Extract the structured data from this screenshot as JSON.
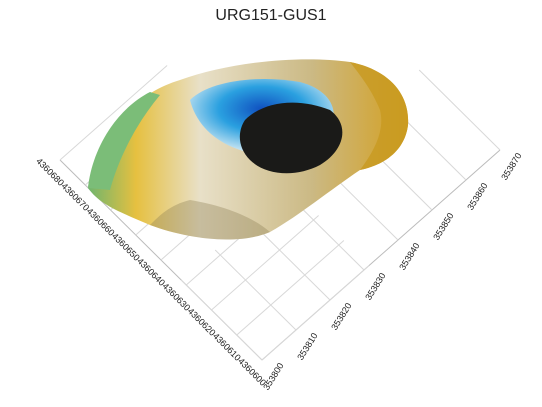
{
  "chart_data": {
    "type": "surface3d",
    "title": "URG151-GUS1",
    "xlim": [
      353800,
      353870
    ],
    "xticks": [
      353800,
      353810,
      353820,
      353830,
      353840,
      353850,
      353860,
      353870
    ],
    "ylim": [
      4360600,
      4360680
    ],
    "yticks": [
      4360600,
      4360610,
      4360620,
      4360630,
      4360640,
      4360650,
      4360660,
      4360670,
      4360680
    ],
    "grid": true
  }
}
